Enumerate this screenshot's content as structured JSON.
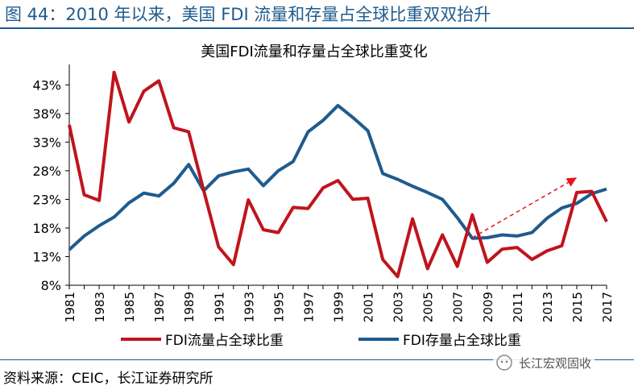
{
  "figure_title": "图 44：2010 年以来，美国 FDI 流量和存量占全球比重双双抬升",
  "source": "资料来源：CEIC，长江证券研究所",
  "watermark": "长江宏观固收",
  "colors": {
    "flow": "#c0141c",
    "stock": "#1f5b8e",
    "trend": "#e8141c",
    "title": "#1f5b8e"
  },
  "chart_data": {
    "type": "line",
    "title": "美国FDI流量和存量占全球比重变化",
    "xlabel": "",
    "ylabel": "",
    "ylim": [
      8,
      46
    ],
    "y_ticks": [
      8,
      13,
      18,
      23,
      28,
      33,
      38,
      43
    ],
    "y_tick_labels": [
      "8%",
      "13%",
      "18%",
      "23%",
      "28%",
      "33%",
      "38%",
      "43%"
    ],
    "x": [
      1981,
      1982,
      1983,
      1984,
      1985,
      1986,
      1987,
      1988,
      1989,
      1990,
      1991,
      1992,
      1993,
      1994,
      1995,
      1996,
      1997,
      1998,
      1999,
      2000,
      2001,
      2002,
      2003,
      2004,
      2005,
      2006,
      2007,
      2008,
      2009,
      2010,
      2011,
      2012,
      2013,
      2014,
      2015,
      2016,
      2017
    ],
    "x_tick_labels": [
      "1981",
      "1983",
      "1985",
      "1987",
      "1989",
      "1991",
      "1993",
      "1995",
      "1997",
      "1999",
      "2001",
      "2003",
      "2005",
      "2007",
      "2009",
      "2011",
      "2013",
      "2015",
      "2017"
    ],
    "series": [
      {
        "name": "FDI流量占全球比重",
        "values": [
          36.0,
          23.8,
          22.8,
          45.2,
          36.5,
          41.9,
          43.7,
          35.5,
          34.8,
          24.6,
          14.7,
          11.6,
          22.9,
          17.7,
          17.2,
          21.6,
          21.4,
          25.0,
          26.3,
          23.0,
          23.2,
          12.5,
          9.5,
          19.6,
          10.9,
          16.8,
          11.3,
          20.3,
          12.0,
          14.3,
          14.6,
          12.5,
          14.0,
          14.9,
          24.2,
          24.4,
          19.1
        ]
      },
      {
        "name": "FDI存量占全球比重",
        "values": [
          14.2,
          16.6,
          18.4,
          19.9,
          22.4,
          24.1,
          23.6,
          25.8,
          29.1,
          24.5,
          27.1,
          27.8,
          28.3,
          25.4,
          28.0,
          29.6,
          34.8,
          36.8,
          39.4,
          37.3,
          35.0,
          27.5,
          26.5,
          25.3,
          24.2,
          23.0,
          19.8,
          16.2,
          16.3,
          16.8,
          16.6,
          17.2,
          19.7,
          21.5,
          22.3,
          24.0,
          24.8
        ]
      }
    ],
    "annotations": [
      {
        "type": "dashed-arrow",
        "from": [
          2008,
          16.3
        ],
        "to": [
          2015,
          26.8
        ]
      }
    ],
    "legend_position": "bottom",
    "grid": false
  }
}
